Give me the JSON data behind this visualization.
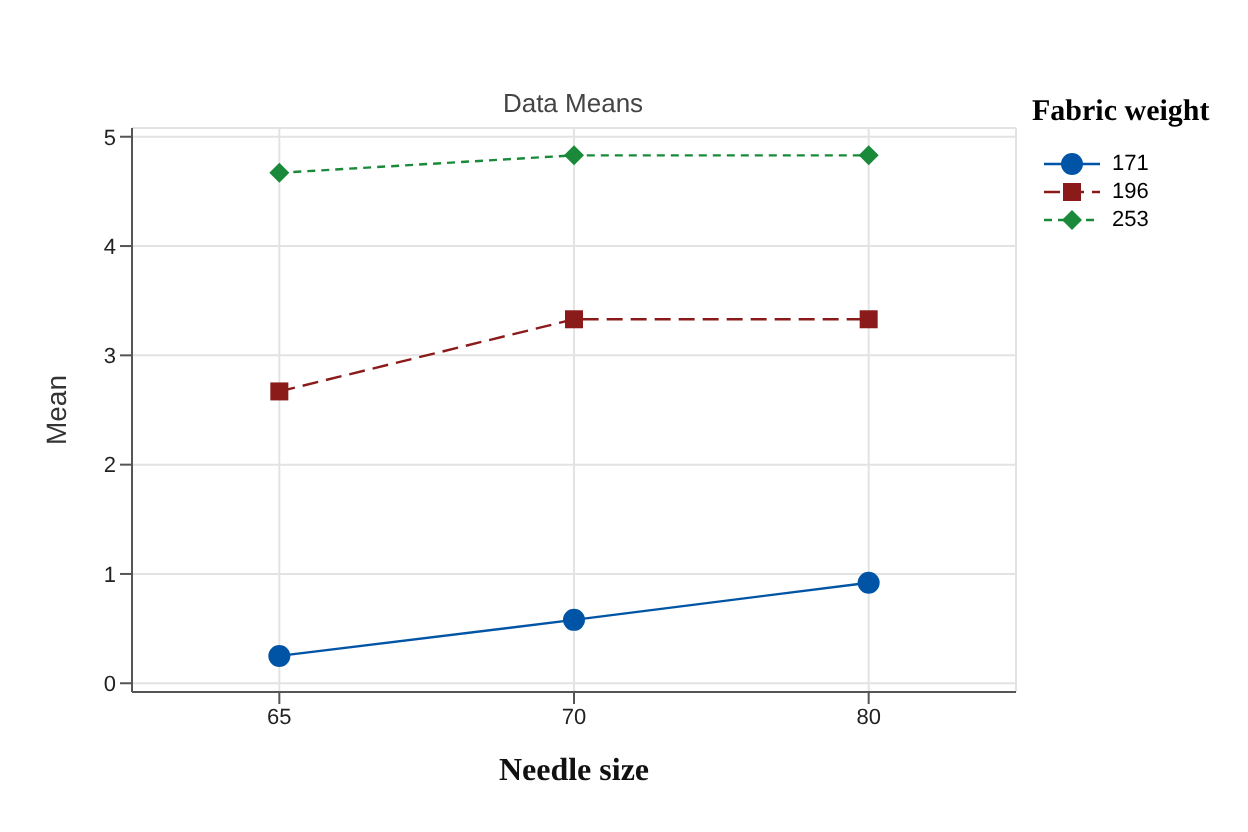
{
  "chart_data": {
    "type": "line",
    "title": "Data Means",
    "xlabel": "Needle size",
    "ylabel": "Mean",
    "legend_title": "Fabric weight",
    "categories": [
      "65",
      "70",
      "80"
    ],
    "series": [
      {
        "name": "171",
        "color": "#0054a6",
        "values": [
          0.25,
          0.58,
          0.92
        ],
        "marker": "circle",
        "line_style": "solid"
      },
      {
        "name": "196",
        "color": "#8b1a1a",
        "values": [
          2.67,
          3.33,
          3.33
        ],
        "marker": "square",
        "line_style": "dashed"
      },
      {
        "name": "253",
        "color": "#1a8a3a",
        "values": [
          4.67,
          4.83,
          4.83
        ],
        "marker": "diamond",
        "line_style": "dotted"
      }
    ],
    "ylim": [
      -0.08,
      5.08
    ],
    "yticks": [
      0,
      1,
      2,
      3,
      4,
      5
    ],
    "grid": true,
    "legend": "right"
  }
}
